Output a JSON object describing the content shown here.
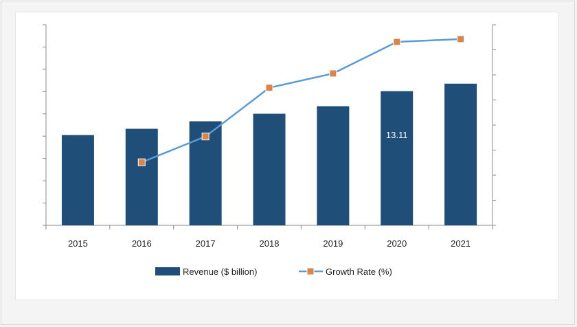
{
  "chart_data": {
    "type": "bar",
    "categories": [
      "2015",
      "2016",
      "2017",
      "2018",
      "2019",
      "2020",
      "2021"
    ],
    "series": [
      {
        "name": "Revenue ($ billion)",
        "type": "bar",
        "axis": "left",
        "color": "#1f4e79",
        "values": [
          7.2,
          7.7,
          8.3,
          8.9,
          9.5,
          10.7,
          11.3
        ]
      },
      {
        "name": "Growth Rate (%)",
        "type": "line",
        "axis": "right",
        "color": "#5b9bd5",
        "marker_color": "#d9854a",
        "values": [
          null,
          2.2,
          3.1,
          4.8,
          5.3,
          6.4,
          6.5
        ]
      }
    ],
    "annotations": [
      {
        "category": "2020",
        "text": "13.11"
      }
    ],
    "ylim_left": [
      0,
      16
    ],
    "ylim_right": [
      0,
      7
    ],
    "legend": "bottom",
    "grid": false
  }
}
